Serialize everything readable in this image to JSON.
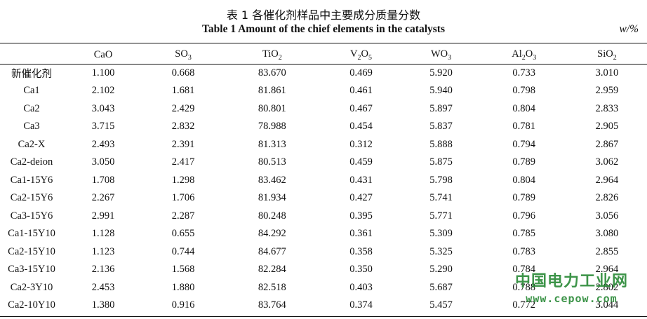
{
  "caption": {
    "cn": "表 1  各催化剂样品中主要成分质量分数",
    "en": "Table 1    Amount of the chief elements in the catalysts",
    "unit": "w/%"
  },
  "table": {
    "headers": [
      {
        "base": "",
        "sub": "",
        "tail": ""
      },
      {
        "base": "CaO",
        "sub": "",
        "tail": ""
      },
      {
        "base": "SO",
        "sub": "3",
        "tail": ""
      },
      {
        "base": "TiO",
        "sub": "2",
        "tail": ""
      },
      {
        "base": "V",
        "sub": "2",
        "tail": "O",
        "sub2": "5"
      },
      {
        "base": "WO",
        "sub": "3",
        "tail": ""
      },
      {
        "base": "Al",
        "sub": "2",
        "tail": "O",
        "sub2": "3"
      },
      {
        "base": "SiO",
        "sub": "2",
        "tail": ""
      }
    ],
    "rows": [
      [
        "新催化剂",
        "1.100",
        "0.668",
        "83.670",
        "0.469",
        "5.920",
        "0.733",
        "3.010"
      ],
      [
        "Ca1",
        "2.102",
        "1.681",
        "81.861",
        "0.461",
        "5.940",
        "0.798",
        "2.959"
      ],
      [
        "Ca2",
        "3.043",
        "2.429",
        "80.801",
        "0.467",
        "5.897",
        "0.804",
        "2.833"
      ],
      [
        "Ca3",
        "3.715",
        "2.832",
        "78.988",
        "0.454",
        "5.837",
        "0.781",
        "2.905"
      ],
      [
        "Ca2-X",
        "2.493",
        "2.391",
        "81.313",
        "0.312",
        "5.888",
        "0.794",
        "2.867"
      ],
      [
        "Ca2-deion",
        "3.050",
        "2.417",
        "80.513",
        "0.459",
        "5.875",
        "0.789",
        "3.062"
      ],
      [
        "Ca1-15Y6",
        "1.708",
        "1.298",
        "83.462",
        "0.431",
        "5.798",
        "0.804",
        "2.964"
      ],
      [
        "Ca2-15Y6",
        "2.267",
        "1.706",
        "81.934",
        "0.427",
        "5.741",
        "0.789",
        "2.826"
      ],
      [
        "Ca3-15Y6",
        "2.991",
        "2.287",
        "80.248",
        "0.395",
        "5.771",
        "0.796",
        "3.056"
      ],
      [
        "Ca1-15Y10",
        "1.128",
        "0.655",
        "84.292",
        "0.361",
        "5.309",
        "0.785",
        "3.080"
      ],
      [
        "Ca2-15Y10",
        "1.123",
        "0.744",
        "84.677",
        "0.358",
        "5.325",
        "0.783",
        "2.855"
      ],
      [
        "Ca3-15Y10",
        "2.136",
        "1.568",
        "82.284",
        "0.350",
        "5.290",
        "0.784",
        "2.964"
      ],
      [
        "Ca2-3Y10",
        "2.453",
        "1.880",
        "82.518",
        "0.403",
        "5.687",
        "0.788",
        "2.802"
      ],
      [
        "Ca2-10Y10",
        "1.380",
        "0.916",
        "83.764",
        "0.374",
        "5.457",
        "0.772",
        "3.044"
      ]
    ]
  },
  "watermark": {
    "cn": "中国电力工业网",
    "en": "www.cepow.com",
    "color": "#2d8b3a"
  }
}
